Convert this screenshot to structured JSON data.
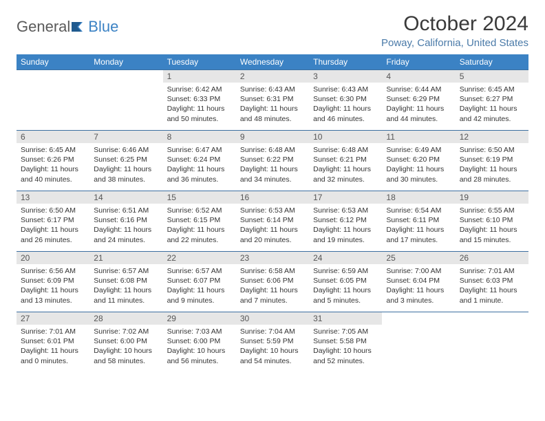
{
  "brand": {
    "g": "General",
    "b": "Blue"
  },
  "title": "October 2024",
  "location": "Poway, California, United States",
  "colors": {
    "header_bg": "#3b82c4",
    "header_text": "#ffffff",
    "daynum_bg": "#e6e6e6",
    "row_border": "#3b6ea0",
    "accent": "#4a7aa8",
    "text": "#333333",
    "background": "#ffffff"
  },
  "typography": {
    "title_fontsize": 30,
    "location_fontsize": 15,
    "dayhead_fontsize": 12,
    "body_fontsize": 10.5
  },
  "weekdays": [
    "Sunday",
    "Monday",
    "Tuesday",
    "Wednesday",
    "Thursday",
    "Friday",
    "Saturday"
  ],
  "weeks": [
    [
      {
        "n": "",
        "r": "",
        "s": "",
        "d": "",
        "e": true
      },
      {
        "n": "",
        "r": "",
        "s": "",
        "d": "",
        "e": true
      },
      {
        "n": "1",
        "r": "Sunrise: 6:42 AM",
        "s": "Sunset: 6:33 PM",
        "d": "Daylight: 11 hours and 50 minutes."
      },
      {
        "n": "2",
        "r": "Sunrise: 6:43 AM",
        "s": "Sunset: 6:31 PM",
        "d": "Daylight: 11 hours and 48 minutes."
      },
      {
        "n": "3",
        "r": "Sunrise: 6:43 AM",
        "s": "Sunset: 6:30 PM",
        "d": "Daylight: 11 hours and 46 minutes."
      },
      {
        "n": "4",
        "r": "Sunrise: 6:44 AM",
        "s": "Sunset: 6:29 PM",
        "d": "Daylight: 11 hours and 44 minutes."
      },
      {
        "n": "5",
        "r": "Sunrise: 6:45 AM",
        "s": "Sunset: 6:27 PM",
        "d": "Daylight: 11 hours and 42 minutes."
      }
    ],
    [
      {
        "n": "6",
        "r": "Sunrise: 6:45 AM",
        "s": "Sunset: 6:26 PM",
        "d": "Daylight: 11 hours and 40 minutes."
      },
      {
        "n": "7",
        "r": "Sunrise: 6:46 AM",
        "s": "Sunset: 6:25 PM",
        "d": "Daylight: 11 hours and 38 minutes."
      },
      {
        "n": "8",
        "r": "Sunrise: 6:47 AM",
        "s": "Sunset: 6:24 PM",
        "d": "Daylight: 11 hours and 36 minutes."
      },
      {
        "n": "9",
        "r": "Sunrise: 6:48 AM",
        "s": "Sunset: 6:22 PM",
        "d": "Daylight: 11 hours and 34 minutes."
      },
      {
        "n": "10",
        "r": "Sunrise: 6:48 AM",
        "s": "Sunset: 6:21 PM",
        "d": "Daylight: 11 hours and 32 minutes."
      },
      {
        "n": "11",
        "r": "Sunrise: 6:49 AM",
        "s": "Sunset: 6:20 PM",
        "d": "Daylight: 11 hours and 30 minutes."
      },
      {
        "n": "12",
        "r": "Sunrise: 6:50 AM",
        "s": "Sunset: 6:19 PM",
        "d": "Daylight: 11 hours and 28 minutes."
      }
    ],
    [
      {
        "n": "13",
        "r": "Sunrise: 6:50 AM",
        "s": "Sunset: 6:17 PM",
        "d": "Daylight: 11 hours and 26 minutes."
      },
      {
        "n": "14",
        "r": "Sunrise: 6:51 AM",
        "s": "Sunset: 6:16 PM",
        "d": "Daylight: 11 hours and 24 minutes."
      },
      {
        "n": "15",
        "r": "Sunrise: 6:52 AM",
        "s": "Sunset: 6:15 PM",
        "d": "Daylight: 11 hours and 22 minutes."
      },
      {
        "n": "16",
        "r": "Sunrise: 6:53 AM",
        "s": "Sunset: 6:14 PM",
        "d": "Daylight: 11 hours and 20 minutes."
      },
      {
        "n": "17",
        "r": "Sunrise: 6:53 AM",
        "s": "Sunset: 6:12 PM",
        "d": "Daylight: 11 hours and 19 minutes."
      },
      {
        "n": "18",
        "r": "Sunrise: 6:54 AM",
        "s": "Sunset: 6:11 PM",
        "d": "Daylight: 11 hours and 17 minutes."
      },
      {
        "n": "19",
        "r": "Sunrise: 6:55 AM",
        "s": "Sunset: 6:10 PM",
        "d": "Daylight: 11 hours and 15 minutes."
      }
    ],
    [
      {
        "n": "20",
        "r": "Sunrise: 6:56 AM",
        "s": "Sunset: 6:09 PM",
        "d": "Daylight: 11 hours and 13 minutes."
      },
      {
        "n": "21",
        "r": "Sunrise: 6:57 AM",
        "s": "Sunset: 6:08 PM",
        "d": "Daylight: 11 hours and 11 minutes."
      },
      {
        "n": "22",
        "r": "Sunrise: 6:57 AM",
        "s": "Sunset: 6:07 PM",
        "d": "Daylight: 11 hours and 9 minutes."
      },
      {
        "n": "23",
        "r": "Sunrise: 6:58 AM",
        "s": "Sunset: 6:06 PM",
        "d": "Daylight: 11 hours and 7 minutes."
      },
      {
        "n": "24",
        "r": "Sunrise: 6:59 AM",
        "s": "Sunset: 6:05 PM",
        "d": "Daylight: 11 hours and 5 minutes."
      },
      {
        "n": "25",
        "r": "Sunrise: 7:00 AM",
        "s": "Sunset: 6:04 PM",
        "d": "Daylight: 11 hours and 3 minutes."
      },
      {
        "n": "26",
        "r": "Sunrise: 7:01 AM",
        "s": "Sunset: 6:03 PM",
        "d": "Daylight: 11 hours and 1 minute."
      }
    ],
    [
      {
        "n": "27",
        "r": "Sunrise: 7:01 AM",
        "s": "Sunset: 6:01 PM",
        "d": "Daylight: 11 hours and 0 minutes."
      },
      {
        "n": "28",
        "r": "Sunrise: 7:02 AM",
        "s": "Sunset: 6:00 PM",
        "d": "Daylight: 10 hours and 58 minutes."
      },
      {
        "n": "29",
        "r": "Sunrise: 7:03 AM",
        "s": "Sunset: 6:00 PM",
        "d": "Daylight: 10 hours and 56 minutes."
      },
      {
        "n": "30",
        "r": "Sunrise: 7:04 AM",
        "s": "Sunset: 5:59 PM",
        "d": "Daylight: 10 hours and 54 minutes."
      },
      {
        "n": "31",
        "r": "Sunrise: 7:05 AM",
        "s": "Sunset: 5:58 PM",
        "d": "Daylight: 10 hours and 52 minutes."
      },
      {
        "n": "",
        "r": "",
        "s": "",
        "d": "",
        "e": true
      },
      {
        "n": "",
        "r": "",
        "s": "",
        "d": "",
        "e": true
      }
    ]
  ]
}
